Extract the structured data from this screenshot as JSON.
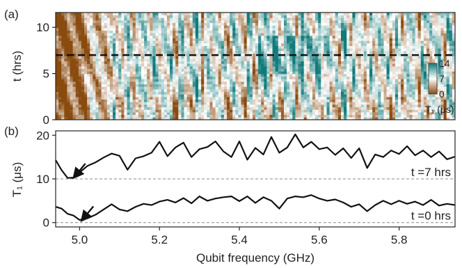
{
  "chart_data": [
    {
      "id": "a",
      "panel_label": "(a)",
      "type": "heatmap",
      "xlabel": "",
      "ylabel": "t (hrs)",
      "xlim": [
        4.94,
        5.94
      ],
      "ylim": [
        0,
        11.6
      ],
      "yticks": [
        0,
        5,
        10
      ],
      "colorbar": {
        "label": "T₁ (μs)",
        "ticks": [
          0,
          7,
          14
        ],
        "range": [
          0,
          14
        ],
        "colors": [
          "#8a4b0f",
          "#ffffff",
          "#127a7a"
        ]
      },
      "dashed_line_t": 7,
      "dominant_freqs": [
        4.955,
        4.97,
        4.985,
        5.0,
        5.01,
        5.02,
        5.04,
        5.06,
        5.12,
        5.2,
        5.22,
        5.24,
        5.28,
        5.31,
        5.33,
        5.365,
        5.4,
        5.43,
        5.47,
        5.5,
        5.52,
        5.545,
        5.575,
        5.62,
        5.66,
        5.69,
        5.72,
        5.77,
        5.8,
        5.84,
        5.88,
        5.92
      ]
    },
    {
      "id": "b",
      "panel_label": "(b)",
      "type": "line",
      "xlabel": "Qubit frequency (GHz)",
      "ylabel": "T₁ (μs)",
      "xlim": [
        4.94,
        5.94
      ],
      "ylim": [
        -1,
        21
      ],
      "xticks": [
        5.0,
        5.2,
        5.4,
        5.6,
        5.8
      ],
      "yticks": [
        0,
        10,
        20
      ],
      "series": [
        {
          "name": "t =7 hrs",
          "baseline": 10,
          "x": [
            4.94,
            4.955,
            4.97,
            4.985,
            5.0,
            5.02,
            5.04,
            5.06,
            5.08,
            5.1,
            5.12,
            5.14,
            5.16,
            5.18,
            5.2,
            5.22,
            5.24,
            5.26,
            5.28,
            5.3,
            5.32,
            5.34,
            5.36,
            5.38,
            5.4,
            5.42,
            5.44,
            5.46,
            5.48,
            5.5,
            5.52,
            5.54,
            5.56,
            5.58,
            5.6,
            5.62,
            5.64,
            5.66,
            5.68,
            5.7,
            5.72,
            5.74,
            5.76,
            5.78,
            5.8,
            5.82,
            5.84,
            5.86,
            5.88,
            5.9,
            5.92,
            5.94
          ],
          "y": [
            14.3,
            12.0,
            10.2,
            10.3,
            11.5,
            13.0,
            13.8,
            14.9,
            15.8,
            15.3,
            12.1,
            14.7,
            15.2,
            16.0,
            18.5,
            15.2,
            17.2,
            18.3,
            15.0,
            16.8,
            17.3,
            18.6,
            16.3,
            15.0,
            18.6,
            14.4,
            17.1,
            15.6,
            19.6,
            16.0,
            17.2,
            20.2,
            17.2,
            18.5,
            16.8,
            17.2,
            15.5,
            17.0,
            14.8,
            17.0,
            12.5,
            15.6,
            15.0,
            16.5,
            15.7,
            17.5,
            15.4,
            16.5,
            15.0,
            16.3,
            14.5,
            15.1
          ]
        },
        {
          "name": "t =0 hrs",
          "baseline": 0,
          "x": [
            4.94,
            4.955,
            4.97,
            4.985,
            5.0,
            5.02,
            5.04,
            5.06,
            5.08,
            5.1,
            5.12,
            5.14,
            5.16,
            5.18,
            5.2,
            5.22,
            5.24,
            5.26,
            5.28,
            5.3,
            5.32,
            5.34,
            5.36,
            5.38,
            5.4,
            5.42,
            5.44,
            5.46,
            5.48,
            5.5,
            5.52,
            5.54,
            5.56,
            5.58,
            5.6,
            5.62,
            5.64,
            5.66,
            5.68,
            5.7,
            5.72,
            5.74,
            5.76,
            5.78,
            5.8,
            5.82,
            5.84,
            5.86,
            5.88,
            5.9,
            5.92,
            5.94
          ],
          "y": [
            3.6,
            3.2,
            2.0,
            1.6,
            0.6,
            1.0,
            1.8,
            3.0,
            4.2,
            3.0,
            2.6,
            3.6,
            4.3,
            4.0,
            4.8,
            5.2,
            4.6,
            5.6,
            4.4,
            6.0,
            5.0,
            5.5,
            5.8,
            6.0,
            4.9,
            6.0,
            4.5,
            5.8,
            5.0,
            3.2,
            5.5,
            6.0,
            5.8,
            6.3,
            5.5,
            5.0,
            5.3,
            4.6,
            3.6,
            4.2,
            2.6,
            4.0,
            5.0,
            4.2,
            5.0,
            4.3,
            4.8,
            4.0,
            5.2,
            3.9,
            4.3,
            4.0
          ]
        }
      ],
      "annotations": [
        {
          "text": "t =7 hrs",
          "y": 10
        },
        {
          "text": "t =0 hrs",
          "y": 0
        }
      ],
      "arrows": [
        {
          "x": 4.99,
          "y": 10.8
        },
        {
          "x": 5.01,
          "y": 1.0
        }
      ]
    }
  ]
}
